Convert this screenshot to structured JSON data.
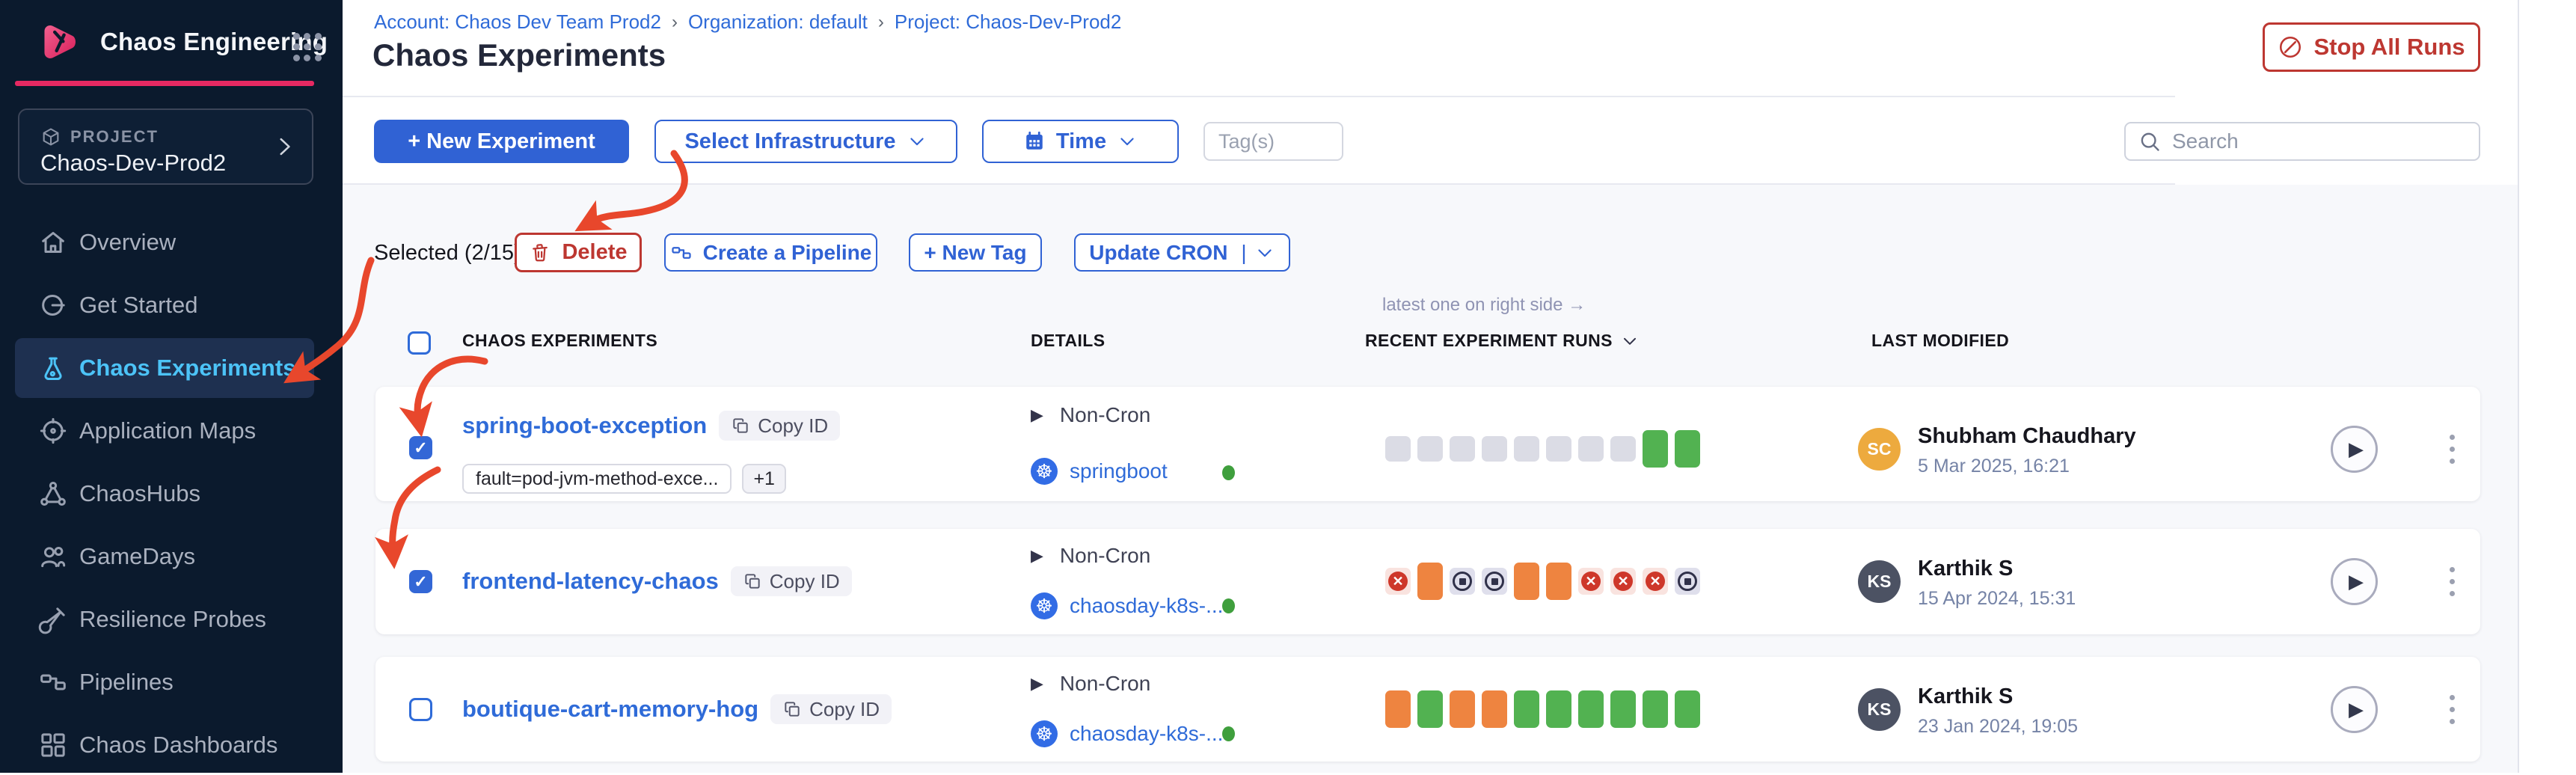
{
  "sidebar": {
    "app_title": "Chaos Engineering",
    "project_label": "PROJECT",
    "project_name": "Chaos-Dev-Prod2",
    "items": [
      {
        "label": "Overview"
      },
      {
        "label": "Get Started"
      },
      {
        "label": "Chaos Experiments"
      },
      {
        "label": "Application Maps"
      },
      {
        "label": "ChaosHubs"
      },
      {
        "label": "GameDays"
      },
      {
        "label": "Resilience Probes"
      },
      {
        "label": "Pipelines"
      },
      {
        "label": "Chaos Dashboards"
      }
    ]
  },
  "header": {
    "breadcrumb": {
      "account": "Account: Chaos Dev Team Prod2",
      "org": "Organization: default",
      "project": "Project: Chaos-Dev-Prod2"
    },
    "title": "Chaos Experiments",
    "stop_all_runs": "Stop All Runs"
  },
  "toolbar": {
    "new_experiment": "+ New Experiment",
    "select_infrastructure": "Select Infrastructure",
    "time": "Time",
    "tags_placeholder": "Tag(s)",
    "search_placeholder": "Search"
  },
  "selection_bar": {
    "selected_text": "Selected (2/15)",
    "delete": "Delete",
    "create_pipeline": "Create a Pipeline",
    "new_tag": "+ New Tag",
    "update_cron": "Update CRON"
  },
  "table": {
    "runs_note": "latest one on right side →",
    "headers": {
      "experiments": "CHAOS EXPERIMENTS",
      "details": "DETAILS",
      "runs": "RECENT EXPERIMENT RUNS",
      "modified": "LAST MODIFIED"
    }
  },
  "rows": [
    {
      "checked": true,
      "name": "spring-boot-exception",
      "copy_label": "Copy ID",
      "tags": [
        "fault=pod-jvm-method-exce...",
        "+1"
      ],
      "schedule": "Non-Cron",
      "infra": "springboot",
      "runs": [
        "none",
        "none",
        "none",
        "none",
        "none",
        "none",
        "none",
        "none",
        "success",
        "success"
      ],
      "modified": {
        "initials": "SC",
        "avatar_color": "#edaa3e",
        "name": "Shubham Chaudhary",
        "date": "5 Mar 2025, 16:21"
      }
    },
    {
      "checked": true,
      "name": "frontend-latency-chaos",
      "copy_label": "Copy ID",
      "tags": [],
      "schedule": "Non-Cron",
      "infra": "chaosday-k8s-...",
      "runs": [
        "failed",
        "completed",
        "stopped",
        "stopped",
        "completed",
        "completed",
        "failed",
        "failed",
        "failed",
        "stopped"
      ],
      "modified": {
        "initials": "KS",
        "avatar_color": "#4c5263",
        "name": "Karthik S",
        "date": "15 Apr 2024, 15:31"
      }
    },
    {
      "checked": false,
      "name": "boutique-cart-memory-hog",
      "copy_label": "Copy ID",
      "tags": [],
      "schedule": "Non-Cron",
      "infra": "chaosday-k8s-...",
      "runs": [
        "completed",
        "success",
        "completed",
        "completed",
        "success",
        "success",
        "success",
        "success",
        "success",
        "success"
      ],
      "modified": {
        "initials": "KS",
        "avatar_color": "#4c5263",
        "name": "Karthik S",
        "date": "23 Jan 2024, 19:05"
      }
    }
  ],
  "colors": {
    "accent_pink": "#e62962",
    "primary_blue": "#3062d4",
    "link_blue": "#2f6bd8",
    "danger_red": "#bd3731",
    "run_none": "#dbdce5",
    "run_success": "#52b251",
    "run_completed": "#ee8440",
    "run_failed": "#ce372a",
    "infra_status_green": "#3f9f3d",
    "annotation_red": "#e8472c"
  }
}
